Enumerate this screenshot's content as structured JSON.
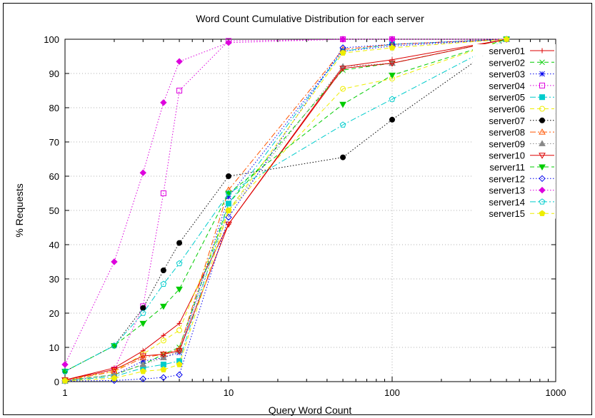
{
  "chart_data": {
    "type": "line",
    "title": "Word Count Cumulative Distribution for each server",
    "xlabel": "Query Word Count",
    "ylabel": "% Requests",
    "xscale": "log",
    "xlim": [
      1,
      1000
    ],
    "ylim": [
      0,
      100
    ],
    "grid": true,
    "legend_position": "top-right",
    "x_ticks": [
      1,
      10,
      100,
      1000
    ],
    "x_tick_labels": [
      "1",
      "10",
      "100",
      "1000"
    ],
    "y_ticks": [
      0,
      10,
      20,
      30,
      40,
      50,
      60,
      70,
      80,
      90,
      100
    ],
    "y_tick_labels": [
      "0",
      "10",
      "20",
      "30",
      "40",
      "50",
      "60",
      "70",
      "80",
      "90",
      "100"
    ],
    "x": [
      1,
      2,
      3,
      4,
      5,
      10,
      50,
      100,
      500
    ],
    "series": [
      {
        "name": "server01",
        "color": "#dd0000",
        "dash": "solid",
        "marker": "plus",
        "values": [
          0.5,
          4,
          9,
          13.5,
          17,
          46,
          92,
          94,
          100
        ]
      },
      {
        "name": "server02",
        "color": "#00cc00",
        "dash": "dashed",
        "marker": "cross",
        "values": [
          0.3,
          2,
          5,
          8,
          10,
          52,
          91,
          93,
          100
        ]
      },
      {
        "name": "server03",
        "color": "#0000ee",
        "dash": "dotted",
        "marker": "asterisk",
        "values": [
          0.2,
          2,
          6,
          7,
          8.5,
          54,
          96.5,
          98,
          100
        ]
      },
      {
        "name": "server04",
        "color": "#dd00dd",
        "dash": "dotted",
        "marker": "square",
        "values": [
          0.2,
          3.5,
          22,
          55,
          85,
          99.5,
          100,
          100,
          100
        ]
      },
      {
        "name": "server05",
        "color": "#00cccc",
        "dash": "dash-dot",
        "marker": "filled-square",
        "values": [
          0.2,
          1.5,
          4,
          5,
          6,
          52,
          96.5,
          98.5,
          100
        ]
      },
      {
        "name": "server06",
        "color": "#eeee00",
        "dash": "dashed",
        "marker": "circle",
        "values": [
          0.5,
          3,
          8,
          12,
          15,
          50,
          85.5,
          88.5,
          100
        ]
      },
      {
        "name": "server07",
        "color": "#000000",
        "dash": "dotted",
        "marker": "filled-circle",
        "values": [
          3,
          10.5,
          21.5,
          32.5,
          40.5,
          60,
          65.5,
          76.5,
          100
        ]
      },
      {
        "name": "server08",
        "color": "#ff5500",
        "dash": "dash-dot",
        "marker": "triangle",
        "values": [
          0.2,
          3,
          7,
          8,
          9.5,
          56,
          97,
          98.5,
          100
        ]
      },
      {
        "name": "server09",
        "color": "#888888",
        "dash": "dotted",
        "marker": "filled-triangle",
        "values": [
          0.2,
          2,
          5,
          7,
          9,
          50,
          92,
          93,
          100
        ]
      },
      {
        "name": "server10",
        "color": "#dd0000",
        "dash": "solid",
        "marker": "inverted-triangle",
        "values": [
          0.5,
          3.5,
          7.5,
          8,
          9,
          46,
          91.5,
          93,
          100
        ]
      },
      {
        "name": "server11",
        "color": "#00cc00",
        "dash": "dashed",
        "marker": "filled-inverted-triangle",
        "values": [
          3,
          10.5,
          17,
          22,
          27,
          55,
          81,
          89.5,
          100
        ]
      },
      {
        "name": "server12",
        "color": "#0000ee",
        "dash": "dotted",
        "marker": "diamond",
        "values": [
          0.2,
          0.3,
          0.8,
          1.2,
          2,
          48,
          97.5,
          98.5,
          100
        ]
      },
      {
        "name": "server13",
        "color": "#dd00dd",
        "dash": "dotted",
        "marker": "filled-diamond",
        "values": [
          5,
          35,
          61,
          81.5,
          93.5,
          99,
          100,
          100,
          100
        ]
      },
      {
        "name": "server14",
        "color": "#00cccc",
        "dash": "dash-dot",
        "marker": "pentagon",
        "values": [
          3,
          10.5,
          20,
          28.5,
          34.5,
          55,
          75,
          82.5,
          100
        ]
      },
      {
        "name": "server15",
        "color": "#eeee00",
        "dash": "dashed",
        "marker": "filled-pentagon",
        "values": [
          0.2,
          1,
          3,
          3.5,
          5,
          50,
          96,
          97.5,
          100
        ]
      }
    ]
  }
}
